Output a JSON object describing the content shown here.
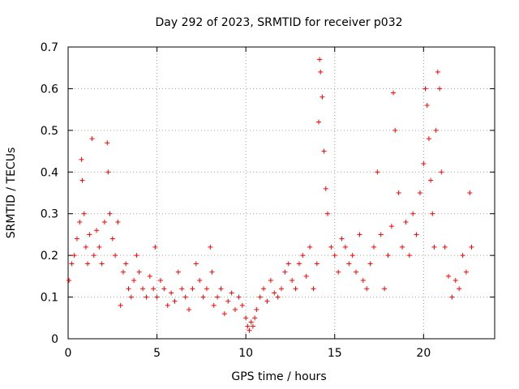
{
  "chart_data": {
    "type": "scatter",
    "title": "Day 292 of 2023, SRMTID for receiver p032",
    "xlabel": "GPS time / hours",
    "ylabel": "SRMTID / TECUs",
    "xlim": [
      0,
      24
    ],
    "ylim": [
      0,
      0.7
    ],
    "xticks": [
      0,
      5,
      10,
      15,
      20
    ],
    "yticks": [
      0,
      0.1,
      0.2,
      0.3,
      0.4,
      0.5,
      0.6,
      0.7
    ],
    "xtick_labels": [
      "0",
      "5",
      "10",
      "15",
      "20"
    ],
    "ytick_labels": [
      "0",
      "0.1",
      "0.2",
      "0.3",
      "0.4",
      "0.5",
      "0.6",
      "0.7"
    ],
    "grid": true,
    "marker": "+",
    "series": [
      {
        "name": "SRMTID",
        "color": "#ff0000",
        "x": [
          0.05,
          0.2,
          0.35,
          0.5,
          0.65,
          0.75,
          0.8,
          0.9,
          1.0,
          1.1,
          1.2,
          1.35,
          1.45,
          1.6,
          1.75,
          1.9,
          2.05,
          2.2,
          2.25,
          2.35,
          2.5,
          2.65,
          2.8,
          2.95,
          3.1,
          3.25,
          3.4,
          3.55,
          3.7,
          3.85,
          4.0,
          4.2,
          4.4,
          4.6,
          4.8,
          4.9,
          5.0,
          5.2,
          5.4,
          5.6,
          5.8,
          6.0,
          6.2,
          6.4,
          6.6,
          6.8,
          7.0,
          7.2,
          7.4,
          7.6,
          7.8,
          8.0,
          8.1,
          8.2,
          8.4,
          8.6,
          8.8,
          9.0,
          9.2,
          9.4,
          9.6,
          9.8,
          10.0,
          10.1,
          10.2,
          10.3,
          10.4,
          10.5,
          10.6,
          10.8,
          11.0,
          11.2,
          11.4,
          11.6,
          11.8,
          12.0,
          12.2,
          12.4,
          12.6,
          12.8,
          13.0,
          13.2,
          13.4,
          13.6,
          13.8,
          14.0,
          14.1,
          14.15,
          14.2,
          14.3,
          14.4,
          14.5,
          14.6,
          14.8,
          15.0,
          15.2,
          15.4,
          15.6,
          15.8,
          16.0,
          16.2,
          16.4,
          16.6,
          16.8,
          17.0,
          17.2,
          17.4,
          17.6,
          17.8,
          18.0,
          18.2,
          18.3,
          18.4,
          18.6,
          18.8,
          19.0,
          19.2,
          19.4,
          19.6,
          19.8,
          20.0,
          20.1,
          20.2,
          20.3,
          20.4,
          20.5,
          20.6,
          20.7,
          20.8,
          20.9,
          21.0,
          21.2,
          21.4,
          21.6,
          21.8,
          22.0,
          22.2,
          22.4,
          22.6,
          22.7
        ],
        "y": [
          0.14,
          0.18,
          0.2,
          0.24,
          0.28,
          0.43,
          0.38,
          0.3,
          0.22,
          0.18,
          0.25,
          0.48,
          0.2,
          0.26,
          0.22,
          0.18,
          0.28,
          0.47,
          0.4,
          0.3,
          0.24,
          0.2,
          0.28,
          0.08,
          0.16,
          0.18,
          0.12,
          0.1,
          0.14,
          0.2,
          0.16,
          0.12,
          0.1,
          0.15,
          0.12,
          0.22,
          0.1,
          0.14,
          0.12,
          0.08,
          0.11,
          0.09,
          0.16,
          0.12,
          0.1,
          0.07,
          0.12,
          0.18,
          0.14,
          0.1,
          0.12,
          0.22,
          0.16,
          0.08,
          0.1,
          0.12,
          0.06,
          0.09,
          0.11,
          0.07,
          0.1,
          0.08,
          0.05,
          0.03,
          0.02,
          0.04,
          0.03,
          0.05,
          0.07,
          0.1,
          0.12,
          0.09,
          0.14,
          0.11,
          0.1,
          0.12,
          0.16,
          0.18,
          0.14,
          0.12,
          0.18,
          0.2,
          0.15,
          0.22,
          0.12,
          0.18,
          0.52,
          0.67,
          0.64,
          0.58,
          0.45,
          0.36,
          0.3,
          0.22,
          0.2,
          0.16,
          0.24,
          0.22,
          0.18,
          0.2,
          0.16,
          0.25,
          0.14,
          0.12,
          0.18,
          0.22,
          0.4,
          0.25,
          0.12,
          0.2,
          0.27,
          0.59,
          0.5,
          0.35,
          0.22,
          0.28,
          0.2,
          0.3,
          0.25,
          0.35,
          0.42,
          0.6,
          0.56,
          0.48,
          0.38,
          0.3,
          0.22,
          0.5,
          0.64,
          0.6,
          0.4,
          0.22,
          0.15,
          0.1,
          0.14,
          0.12,
          0.2,
          0.16,
          0.35,
          0.22
        ]
      }
    ]
  }
}
